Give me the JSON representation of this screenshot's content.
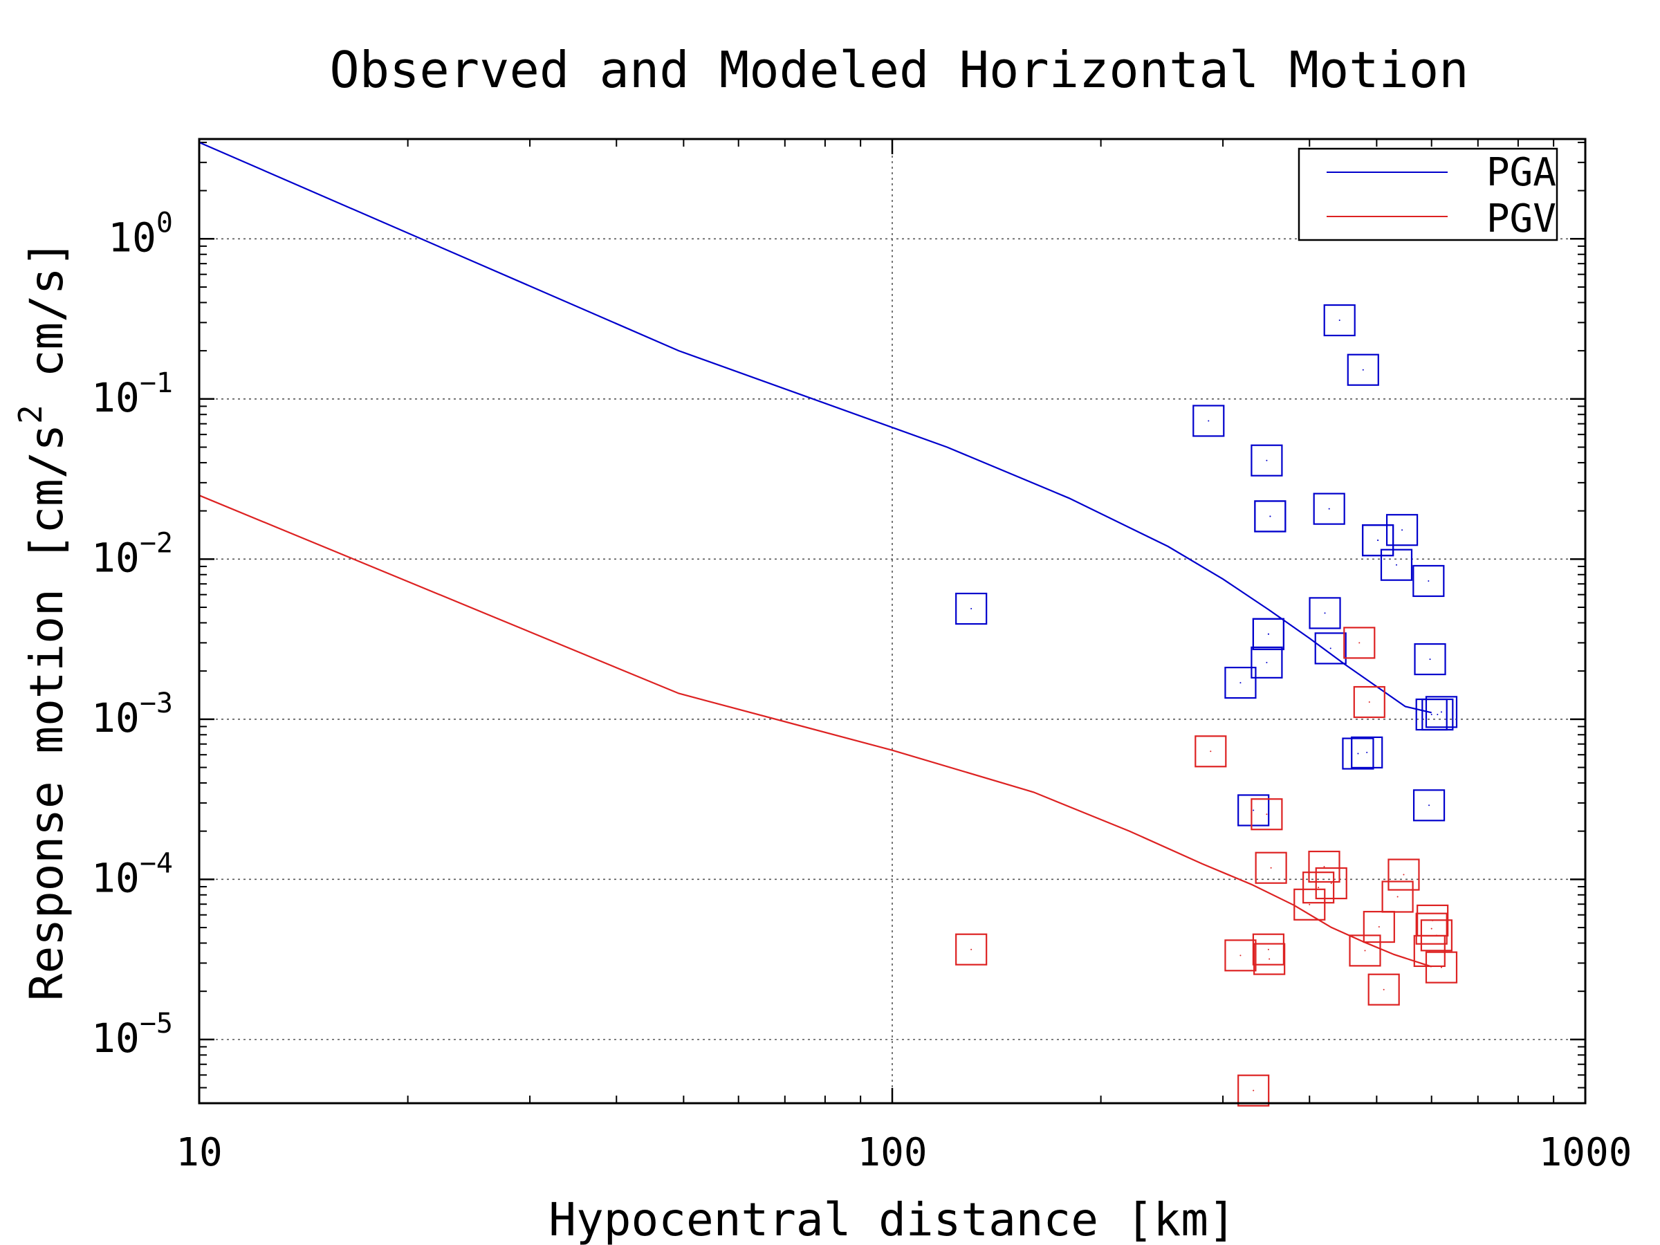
{
  "chart_data": {
    "type": "scatter",
    "title": "Observed and Modeled Horizontal Motion",
    "xlabel": "Hypocentral distance [km]",
    "ylabel_main": "Response motion  [cm/s",
    "ylabel_sup": "2",
    "ylabel_end": "  cm/s]",
    "x_scale": "log",
    "y_scale": "log",
    "xlim": [
      10,
      1000
    ],
    "ylim": [
      4e-06,
      4.2
    ],
    "grid": true,
    "legend_position": "top-right",
    "x_ticks": [
      {
        "value": 10,
        "label": "10"
      },
      {
        "value": 100,
        "label": "100"
      },
      {
        "value": 1000,
        "label": "1000"
      }
    ],
    "y_ticks": [
      {
        "value": 1,
        "base": "10",
        "exp": "0"
      },
      {
        "value": 0.1,
        "base": "10",
        "exp": "−1"
      },
      {
        "value": 0.01,
        "base": "10",
        "exp": "−2"
      },
      {
        "value": 0.001,
        "base": "10",
        "exp": "−3"
      },
      {
        "value": 0.0001,
        "base": "10",
        "exp": "−4"
      },
      {
        "value": 1e-05,
        "base": "10",
        "exp": "−5"
      }
    ],
    "series": [
      {
        "name": "PGA",
        "color": "#0000cc",
        "line": {
          "x": [
            10,
            49.2,
            120,
            180,
            250,
            300,
            350,
            400,
            450,
            500,
            550,
            600
          ],
          "y": [
            4.0,
            0.2,
            0.05,
            0.024,
            0.012,
            0.0075,
            0.0048,
            0.0032,
            0.0022,
            0.0016,
            0.0012,
            0.0011
          ]
        },
        "observed": {
          "x": [
            130,
            286,
            318,
            332,
            347,
            347,
            349,
            349,
            351,
            351,
            421,
            427,
            429,
            442,
            470,
            478,
            484,
            502,
            502,
            534,
            544,
            595,
            594,
            597,
            600,
            612,
            620
          ],
          "y": [
            0.0049,
            0.073,
            0.00169,
            0.00027,
            0.00226,
            0.0413,
            0.0034,
            0.0034,
            0.0185,
            0.0185,
            0.0046,
            0.0206,
            0.00277,
            0.31,
            0.00061,
            0.152,
            0.00062,
            0.0131,
            0.0131,
            0.0092,
            0.0152,
            0.00029,
            0.0073,
            0.00237,
            0.00107,
            0.00107,
            0.00111
          ]
        }
      },
      {
        "name": "PGV",
        "color": "#dd2222",
        "line": {
          "x": [
            10,
            49.2,
            100,
            160,
            220,
            280,
            330,
            380,
            430,
            480,
            530,
            600
          ],
          "y": [
            0.025,
            0.00145,
            0.00064,
            0.00035,
            0.0002,
            0.000125,
            9.29e-05,
            6.89e-05,
            5.01e-05,
            4.05e-05,
            3.39e-05,
            2.85e-05
          ]
        },
        "observed": {
          "x": [
            130,
            288,
            318,
            332,
            347,
            349,
            350,
            352,
            400,
            412,
            420,
            430,
            472,
            481,
            488,
            504,
            512,
            536,
            547,
            596,
            600,
            602,
            610,
            620
          ],
          "y": [
            3.65e-05,
            0.00063,
            3.35e-05,
            4.8e-06,
            0.000255,
            3.65e-05,
            3.18e-05,
            0.000118,
            6.96e-05,
            8.89e-05,
            0.00012,
            9.45e-05,
            0.003,
            3.59e-05,
            0.00128,
            5.05e-05,
            2.05e-05,
            7.79e-05,
            0.000107,
            3.57e-05,
            4.92e-05,
            5.53e-05,
            4.47e-05,
            2.82e-05
          ]
        }
      }
    ]
  }
}
